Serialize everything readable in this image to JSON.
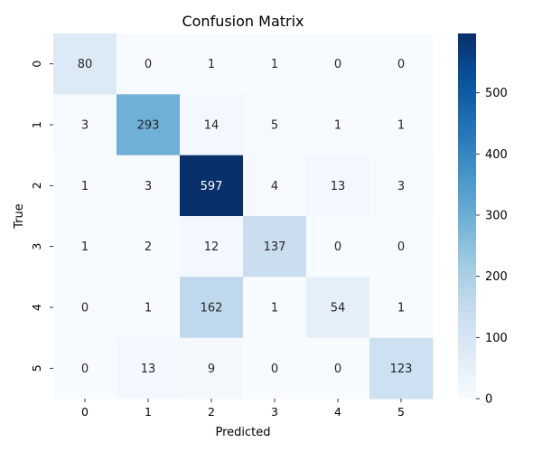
{
  "chart_data": {
    "type": "heatmap",
    "title": "Confusion Matrix",
    "xlabel": "Predicted",
    "ylabel": "True",
    "x_categories": [
      "0",
      "1",
      "2",
      "3",
      "4",
      "5"
    ],
    "y_categories": [
      "0",
      "1",
      "2",
      "3",
      "4",
      "5"
    ],
    "values": [
      [
        80,
        0,
        1,
        1,
        0,
        0
      ],
      [
        3,
        293,
        14,
        5,
        1,
        1
      ],
      [
        1,
        3,
        597,
        4,
        13,
        3
      ],
      [
        1,
        2,
        12,
        137,
        0,
        0
      ],
      [
        0,
        1,
        162,
        1,
        54,
        1
      ],
      [
        0,
        13,
        9,
        0,
        0,
        123
      ]
    ],
    "colormap": "Blues",
    "vmin": 0,
    "vmax": 597,
    "colorbar_ticks": [
      0,
      100,
      200,
      300,
      400,
      500
    ],
    "grid": false,
    "legend": "colorbar-right"
  }
}
